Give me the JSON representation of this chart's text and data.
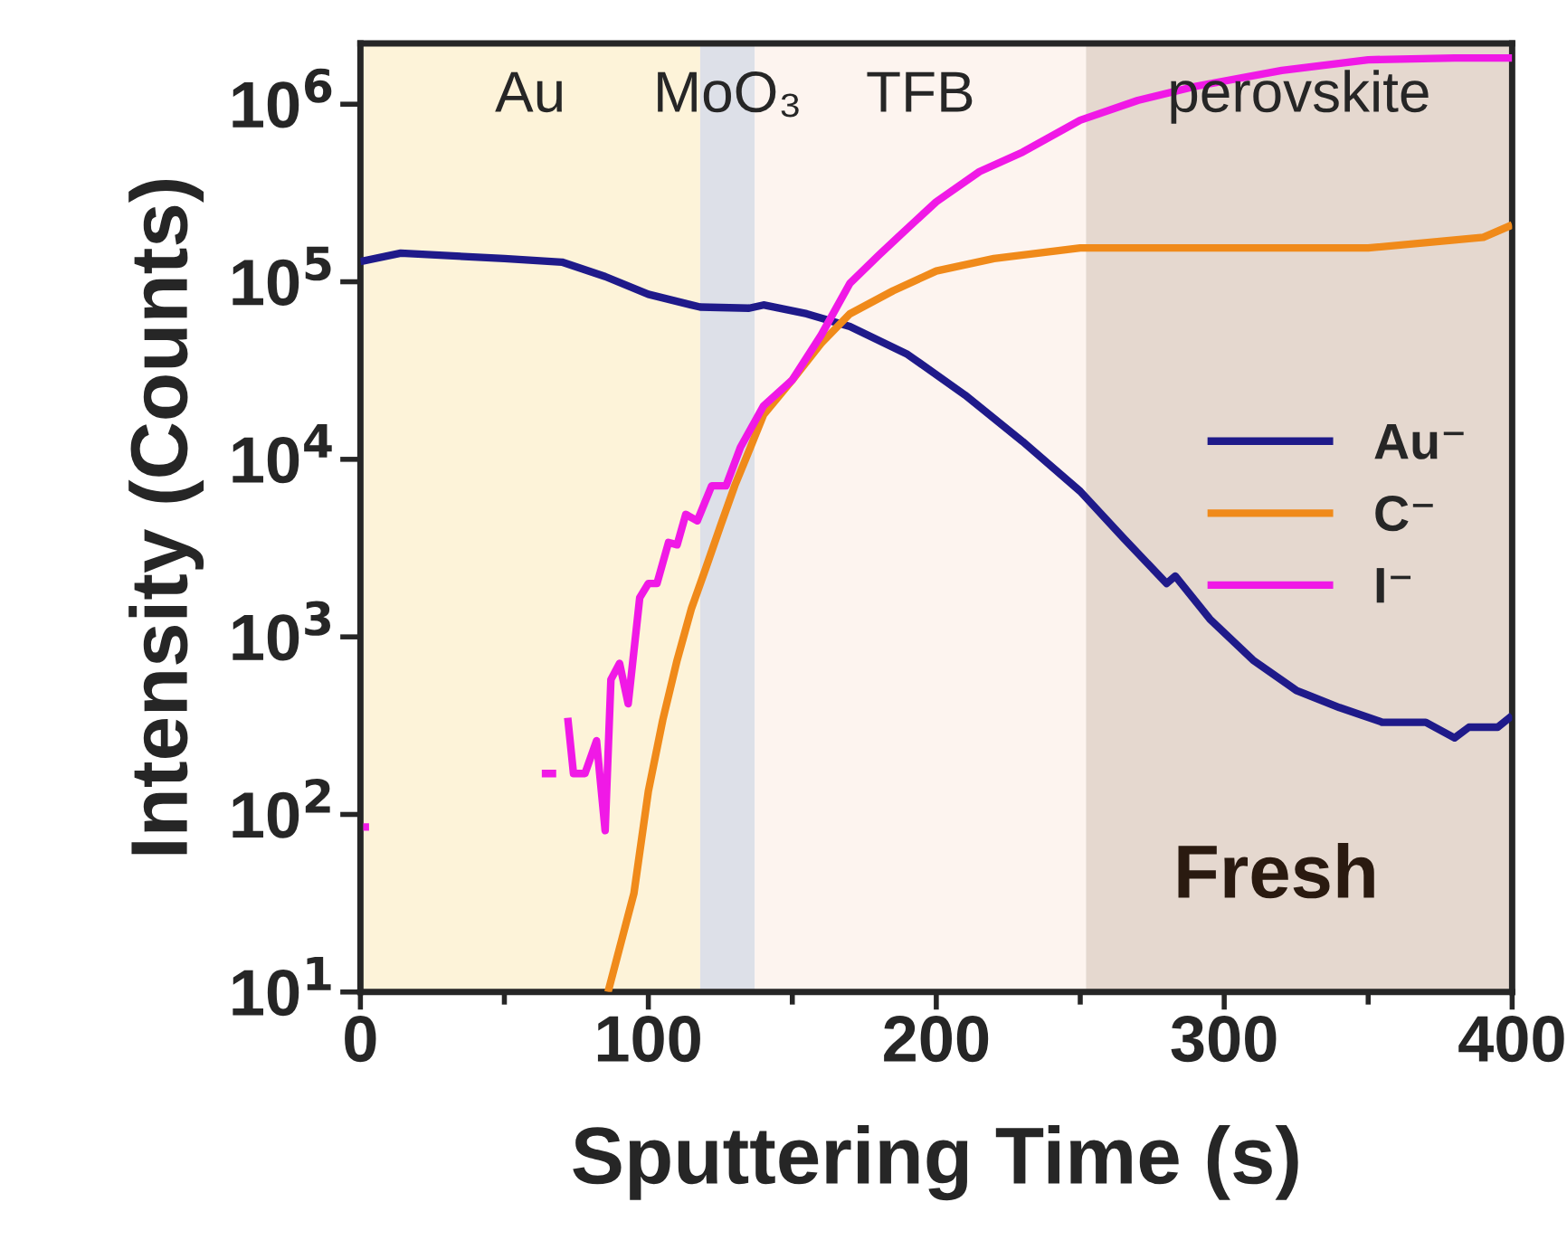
{
  "chart_data": {
    "type": "line",
    "xlabel": "Sputtering Time (s)",
    "ylabel": "Intensity (Counts)",
    "log": "y",
    "grid": false,
    "legend": "center right",
    "line_style": "solid",
    "marker": "none",
    "xlim": [
      0,
      400
    ],
    "xticks": [
      0,
      {
        "value": 50,
        "label": null
      },
      100,
      {
        "value": 150,
        "label": null
      },
      200,
      {
        "value": 250,
        "label": null
      },
      300,
      {
        "value": 350,
        "label": null
      },
      400
    ],
    "ylim": [
      10,
      2200000
    ],
    "yticks": [
      {
        "value": 10,
        "label": "10$^{1}$"
      },
      {
        "value": 100,
        "label": "10$^{2}$"
      },
      {
        "value": 1000,
        "label": "10$^{3}$"
      },
      {
        "value": 10000,
        "label": "10$^{4}$"
      },
      {
        "value": 100000,
        "label": "10$^{5}$"
      },
      {
        "value": 1000000,
        "label": "10$^{6}$"
      }
    ],
    "bands": [
      {
        "axis": "x",
        "from": 0,
        "to": 118,
        "label": "Au",
        "color": "#fdf3d9"
      },
      {
        "axis": "x",
        "from": 118,
        "to": 137,
        "label": "MoO₃",
        "color": "#dde0e8"
      },
      {
        "axis": "x",
        "from": 137,
        "to": 252,
        "label": "TFB",
        "color": "#fdf4ef"
      },
      {
        "axis": "x",
        "from": 252,
        "to": 400,
        "label": "perovskite",
        "color": "#e5d8cf"
      }
    ],
    "annotations": [
      "Fresh"
    ],
    "series": [
      {
        "name": "Au⁻",
        "color": "#1f1a8a",
        "x": [
          0,
          14,
          50,
          70,
          85,
          100,
          118,
          135,
          140,
          155,
          170,
          190,
          210,
          230,
          250,
          265,
          280,
          283,
          295,
          310,
          325,
          340,
          355,
          370,
          380,
          385,
          395,
          400
        ],
        "values": [
          130000,
          145000,
          135000,
          129000,
          107000,
          85000,
          72000,
          71000,
          74000,
          66000,
          56000,
          39000,
          23000,
          12600,
          6600,
          3600,
          2000,
          2200,
          1260,
          740,
          500,
          400,
          330,
          330,
          270,
          310,
          310,
          360
        ]
      },
      {
        "name": "C⁻",
        "color": "#f08a1a",
        "x": [
          86,
          95,
          100,
          105,
          110,
          115,
          120,
          125,
          130,
          135,
          140,
          150,
          160,
          170,
          185,
          200,
          220,
          250,
          300,
          350,
          390,
          400
        ],
        "values": [
          10,
          36,
          135,
          340,
          740,
          1450,
          2450,
          4200,
          7100,
          11200,
          17800,
          28000,
          45000,
          66000,
          89000,
          115000,
          135000,
          155000,
          155000,
          155000,
          178000,
          209000
        ]
      },
      {
        "name": "I⁻",
        "color": "#f019e6",
        "x": [
          1,
          3,
          4,
          63,
          68,
          69,
          72,
          74,
          78,
          82,
          85,
          87,
          90,
          93,
          97,
          100,
          103,
          107,
          110,
          113,
          117,
          122,
          127,
          132,
          140,
          150,
          160,
          170,
          180,
          190,
          200,
          215,
          230,
          250,
          270,
          290,
          320,
          350,
          380,
          400
        ],
        "values": [
          85,
          85,
          null,
          170,
          170,
          null,
          350,
          170,
          170,
          260,
          81,
          575,
          710,
          420,
          1660,
          2000,
          2000,
          3400,
          3300,
          4900,
          4500,
          7100,
          7100,
          11700,
          20000,
          28000,
          50000,
          98000,
          141000,
          200000,
          282000,
          417000,
          537000,
          813000,
          1050000,
          1260000,
          1550000,
          1780000,
          1820000,
          1820000
        ]
      }
    ]
  }
}
